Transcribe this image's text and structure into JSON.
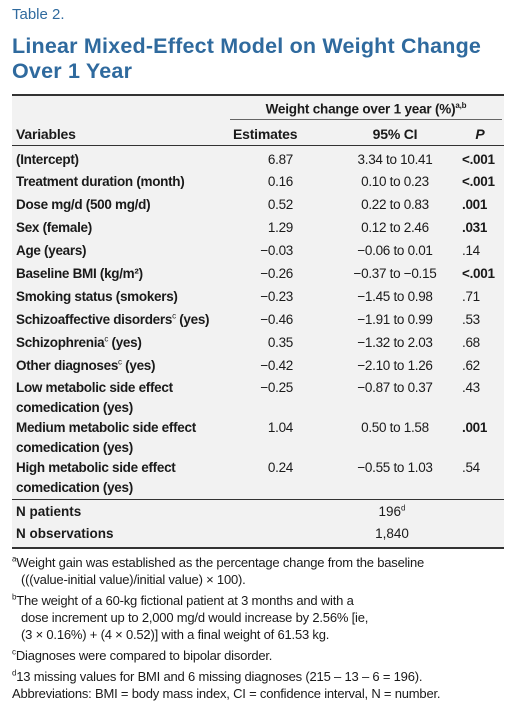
{
  "table_label": "Table 2.",
  "title": "Linear Mixed-Effect Model on Weight Change Over 1 Year",
  "header": {
    "group_label": "Weight change over 1 year (%)",
    "group_sup": "a,b",
    "col_variables": "Variables",
    "col_estimates": "Estimates",
    "col_ci": "95% CI",
    "col_p": "P"
  },
  "rows": [
    {
      "variable": "(Intercept)",
      "sup": "",
      "variable_suffix": "",
      "estimate": "6.87",
      "ci": "3.34 to 10.41",
      "p": "<.001",
      "p_bold": true
    },
    {
      "variable": "Treatment duration (month)",
      "sup": "",
      "variable_suffix": "",
      "estimate": "0.16",
      "ci": "0.10 to 0.23",
      "p": "<.001",
      "p_bold": true
    },
    {
      "variable": "Dose mg/d (500 mg/d)",
      "sup": "",
      "variable_suffix": "",
      "estimate": "0.52",
      "ci": "0.22 to 0.83",
      "p": ".001",
      "p_bold": true
    },
    {
      "variable": "Sex (female)",
      "sup": "",
      "variable_suffix": "",
      "estimate": "1.29",
      "ci": "0.12 to 2.46",
      "p": ".031",
      "p_bold": true
    },
    {
      "variable": "Age (years)",
      "sup": "",
      "variable_suffix": "",
      "estimate": "−0.03",
      "ci": "−0.06 to 0.01",
      "p": ".14",
      "p_bold": false
    },
    {
      "variable": "Baseline BMI (kg/m²)",
      "sup": "",
      "variable_suffix": "",
      "estimate": "−0.26",
      "ci": "−0.37 to −0.15",
      "p": "<.001",
      "p_bold": true
    },
    {
      "variable": "Smoking status (smokers)",
      "sup": "",
      "variable_suffix": "",
      "estimate": "−0.23",
      "ci": "−1.45 to 0.98",
      "p": ".71",
      "p_bold": false
    },
    {
      "variable": "Schizoaffective disorders",
      "sup": "c",
      "variable_suffix": " (yes)",
      "estimate": "−0.46",
      "ci": "−1.91 to 0.99",
      "p": ".53",
      "p_bold": false
    },
    {
      "variable": "Schizophrenia",
      "sup": "c",
      "variable_suffix": " (yes)",
      "estimate": "0.35",
      "ci": "−1.32 to 2.03",
      "p": ".68",
      "p_bold": false
    },
    {
      "variable": "Other diagnoses",
      "sup": "c",
      "variable_suffix": " (yes)",
      "estimate": "−0.42",
      "ci": "−2.10 to 1.26",
      "p": ".62",
      "p_bold": false
    },
    {
      "variable": "Low metabolic side effect comedication (yes)",
      "sup": "",
      "variable_suffix": "",
      "estimate": "−0.25",
      "ci": "−0.87 to 0.37",
      "p": ".43",
      "p_bold": false
    },
    {
      "variable": "Medium metabolic side effect comedication (yes)",
      "sup": "",
      "variable_suffix": "",
      "estimate": "1.04",
      "ci": "0.50 to 1.58",
      "p": ".001",
      "p_bold": true
    },
    {
      "variable": "High metabolic side effect comedication (yes)",
      "sup": "",
      "variable_suffix": "",
      "estimate": "0.24",
      "ci": "−0.55 to 1.03",
      "p": ".54",
      "p_bold": false
    }
  ],
  "counts": [
    {
      "label": "N patients",
      "value": "196",
      "sup": "d"
    },
    {
      "label": "N observations",
      "value": "1,840",
      "sup": ""
    }
  ],
  "footnotes": {
    "a_mark": "a",
    "a_line1": "Weight gain was established as the percentage change from the baseline",
    "a_line2": "(((value-initial value)/initial value) × 100).",
    "b_mark": "b",
    "b_line1": "The weight of a 60-kg fictional patient at 3 months and with a",
    "b_line2": "dose increment up to 2,000 mg/d would increase by 2.56% [ie,",
    "b_line3": "(3 × 0.16%) + (4 × 0.52)] with a final weight of 61.53 kg.",
    "c_mark": "c",
    "c_line1": "Diagnoses were compared to bipolar disorder.",
    "d_mark": "d",
    "d_line1": "13 missing values for BMI and 6 missing diagnoses (215 – 13 – 6 = 196).",
    "abbreviations": "Abbreviations: BMI = body mass index, CI = confidence interval, N = number."
  }
}
